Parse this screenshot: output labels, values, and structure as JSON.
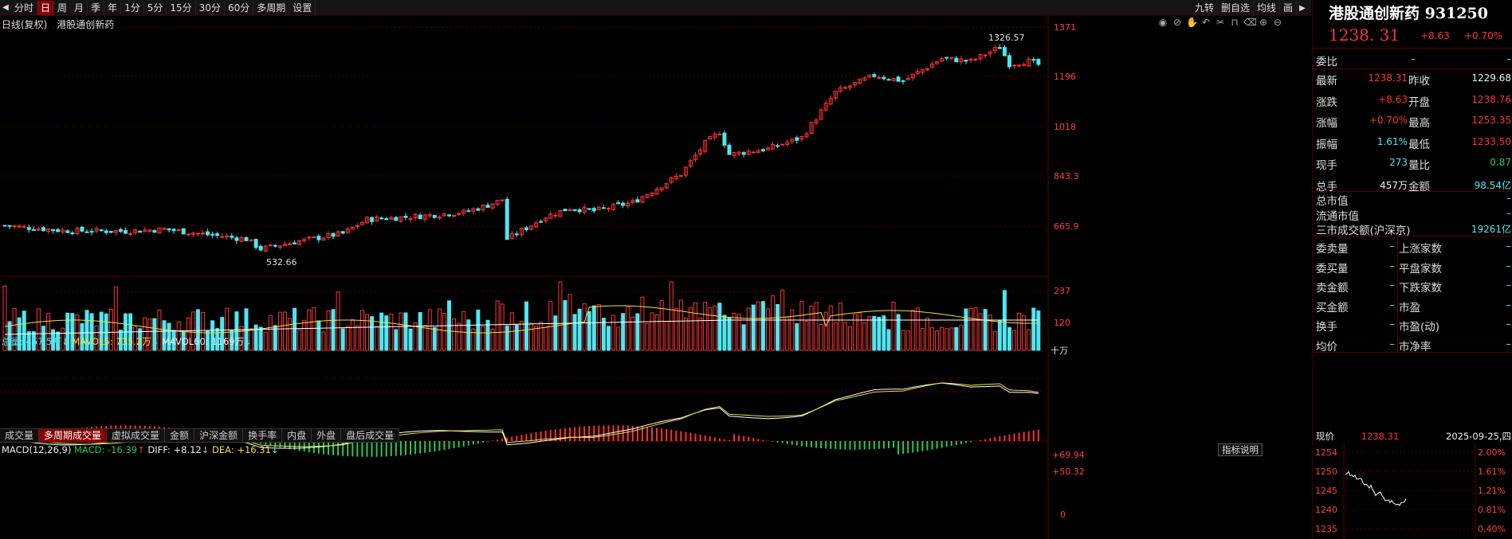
{
  "toolbar": {
    "periods": [
      "分时",
      "日",
      "周",
      "月",
      "季",
      "年",
      "1分",
      "5分",
      "15分",
      "30分",
      "60分",
      "多周期",
      "设置"
    ],
    "active": "日",
    "right": [
      "九转",
      "删自选",
      "均线",
      "画"
    ]
  },
  "title": {
    "period_label": "日线(复权)",
    "name": "港股通创新药"
  },
  "tools": [
    "eye",
    "eye-slash",
    "hand",
    "undo",
    "scissors",
    "lock",
    "trash",
    "plus",
    "minus"
  ],
  "price_axis": {
    "labels": [
      "1371",
      "1196",
      "1018",
      "843.3",
      "665.9"
    ],
    "ticks": [
      1371,
      1196,
      1018,
      843.3,
      665.9
    ]
  },
  "annotations": {
    "high": "1326.57",
    "low": "532.66"
  },
  "volume": {
    "legend_total": "总量: 457.5万",
    "legend_mavol5": "MAVOL5: 735.2万",
    "legend_mavol60": "MAVOL60: 1169万",
    "axis": [
      "237",
      "120",
      "十万"
    ]
  },
  "tabs": [
    "成交量",
    "多周期成交量",
    "虚拟成交量",
    "金额",
    "沪深金额",
    "换手率",
    "内盘",
    "外盘",
    "盘后成交量"
  ],
  "active_tab": "多周期成交量",
  "macd": {
    "label": "MACD(12,26,9)",
    "macd_val": "MACD: -16.39",
    "diff_val": "DIFF: +8.12",
    "dea_val": "DEA: +16.31",
    "axis": [
      "+69.94",
      "+50.32",
      "0"
    ],
    "button": "指标说明"
  },
  "colors": {
    "up": "#ff3333",
    "down": "#4fe6f0",
    "ma5": "#f0e040",
    "ma10": "#ffffff"
  },
  "panel": {
    "title": "港股通创新药 931250",
    "price": "1238. 31",
    "change": "+8.63",
    "pct": "+0.70%",
    "weibi_label": "委比",
    "weibi_v1": "–",
    "weibi_v2": "–",
    "rows": [
      {
        "l1": "最新",
        "v1": "1238.31",
        "l2": "昨收",
        "v2": "1229.68",
        "c1": "red",
        "c2": "white"
      },
      {
        "l1": "涨跌",
        "v1": "+8.63",
        "l2": "开盘",
        "v2": "1238.76",
        "c1": "red",
        "c2": "red"
      },
      {
        "l1": "涨幅",
        "v1": "+0.70%",
        "l2": "最高",
        "v2": "1253.35",
        "c1": "red",
        "c2": "red"
      },
      {
        "l1": "振幅",
        "v1": "1.61%",
        "l2": "最低",
        "v2": "1233.50",
        "c1": "cyan",
        "c2": "red"
      },
      {
        "l1": "现手",
        "v1": "273",
        "l2": "量比",
        "v2": "0.87",
        "c1": "cyan",
        "c2": "green"
      },
      {
        "l1": "总手",
        "v1": "457万",
        "l2": "金额",
        "v2": "98.54亿",
        "c1": "white",
        "c2": "cyan"
      }
    ],
    "market": [
      {
        "l": "总市值",
        "v": "–"
      },
      {
        "l": "流通市值",
        "v": "–"
      },
      {
        "l": "三市成交额(沪深京)",
        "v": "19261亿"
      }
    ],
    "grid": [
      [
        "委卖量",
        "上涨家数"
      ],
      [
        "委买量",
        "平盘家数"
      ],
      [
        "卖金额",
        "下跌家数"
      ],
      [
        "买金额",
        "市盈"
      ],
      [
        "换手",
        "市盈(动)"
      ],
      [
        "均价",
        "市净率"
      ]
    ],
    "mini": {
      "label": "现价",
      "value": "1238.31",
      "date": "2025-09-25,四",
      "y": [
        "1254",
        "1250",
        "1245",
        "1240",
        "1235"
      ],
      "pct": [
        "2.00%",
        "1.61%",
        "1.21%",
        "0.81%",
        "0.40%"
      ]
    }
  }
}
